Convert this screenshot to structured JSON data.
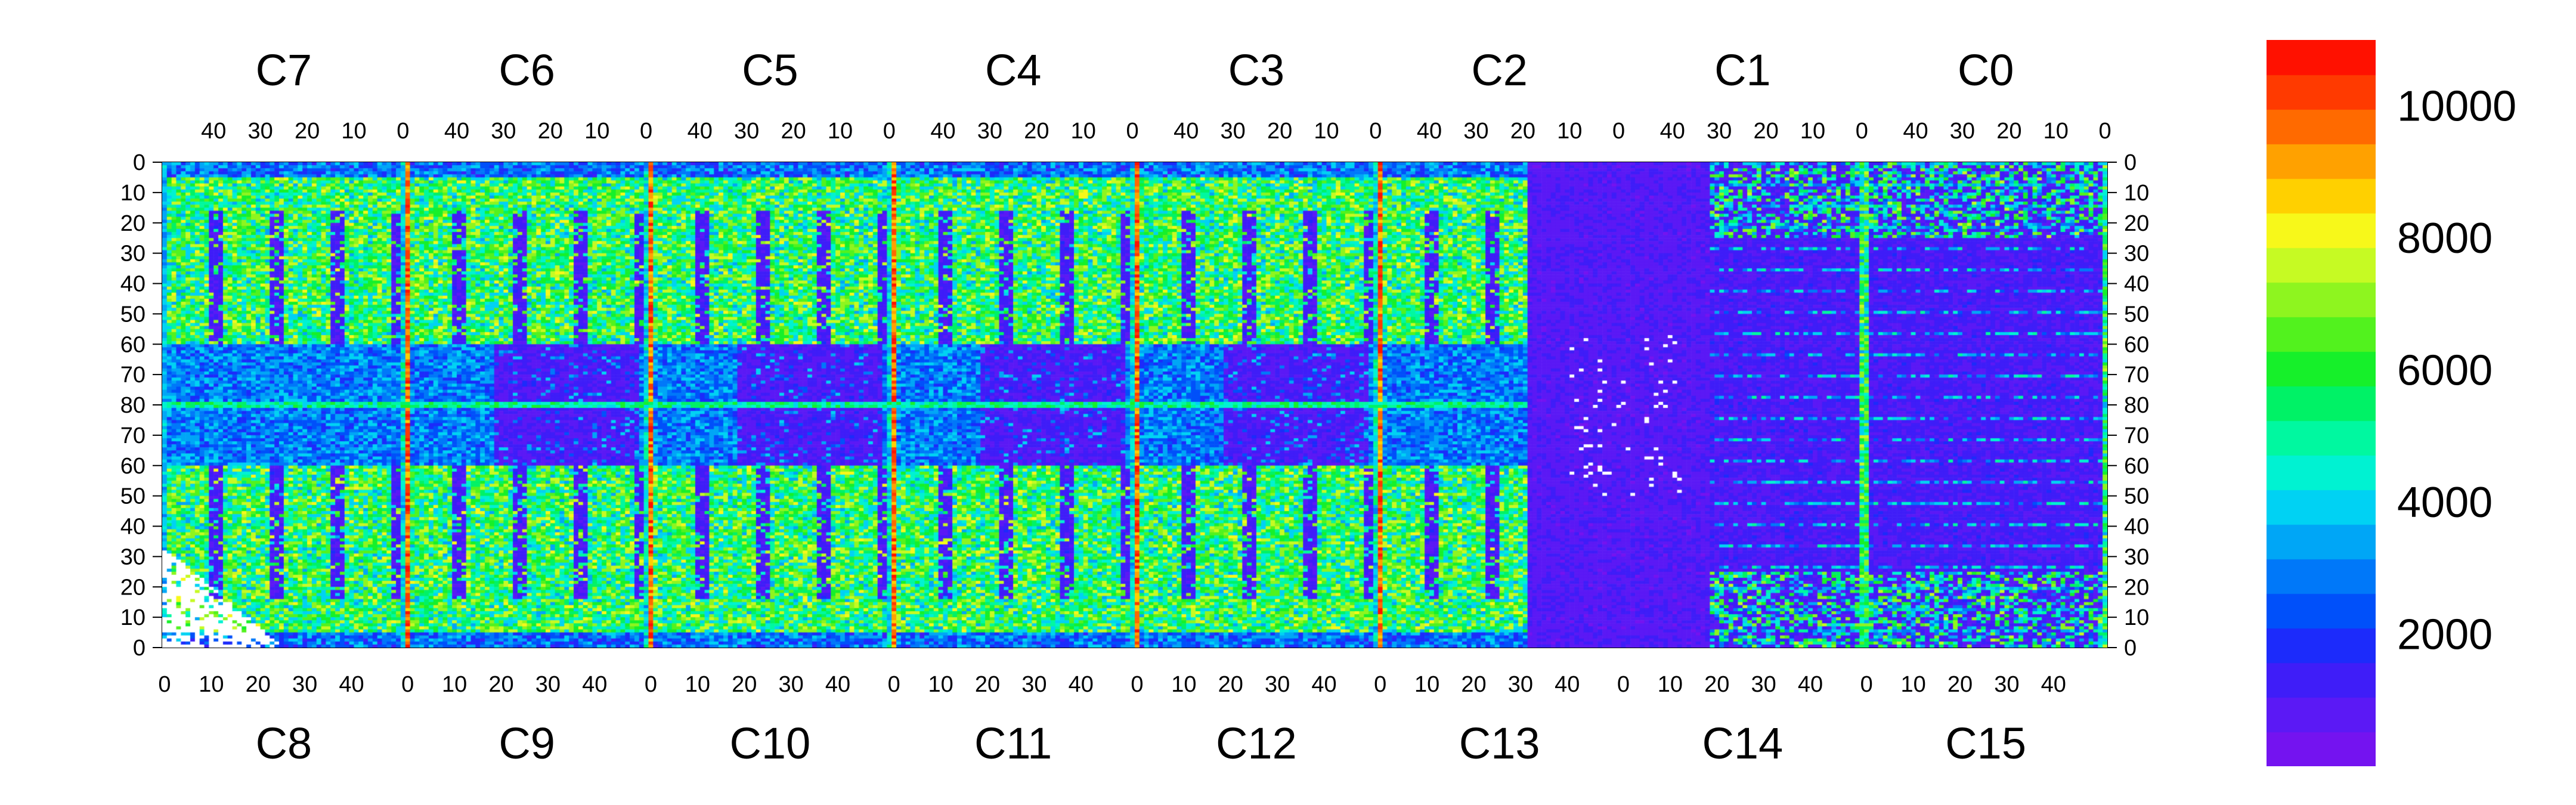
{
  "chart_data": {
    "type": "heatmap",
    "title": "",
    "top_chip_labels": [
      "C7",
      "C6",
      "C5",
      "C4",
      "C3",
      "C2",
      "C1",
      "C0"
    ],
    "bottom_chip_labels": [
      "C8",
      "C9",
      "C10",
      "C11",
      "C12",
      "C13",
      "C14",
      "C15"
    ],
    "top_tick_labels": [
      "40",
      "30",
      "20",
      "10",
      "0"
    ],
    "bottom_tick_labels": [
      "0",
      "10",
      "20",
      "30",
      "40"
    ],
    "y_tick_labels": [
      "0",
      "10",
      "20",
      "30",
      "40",
      "50",
      "60",
      "70",
      "80",
      "70",
      "60",
      "50",
      "40",
      "30",
      "20",
      "10",
      "0"
    ],
    "colorbar": {
      "min": 0,
      "max": 11000,
      "tick_labels": [
        "10000",
        "8000",
        "6000",
        "4000",
        "2000"
      ],
      "tick_values": [
        10000,
        8000,
        6000,
        4000,
        2000
      ],
      "colors": [
        "#7413f0",
        "#5b19f5",
        "#3f1df8",
        "#1c2bfb",
        "#0050fa",
        "#0078f9",
        "#00a6f6",
        "#00d2f3",
        "#00f2d2",
        "#00f8a0",
        "#00f266",
        "#16f02a",
        "#52f21e",
        "#8ef51f",
        "#c6fa23",
        "#f7f81a",
        "#ffd000",
        "#ffa100",
        "#ff6a00",
        "#ff3a00",
        "#ff1100"
      ]
    },
    "chips_per_row": 8,
    "columns_per_chip": 52,
    "rows_per_half": 80,
    "features": {
      "high_columns_near_edges": "red vertical columns at the chip boundaries in the left half",
      "low_region": "chips C1/C2 and C13/C14 region near column 60 mostly low values",
      "white_empty_pixels": "lower-left corner of C8 and scattered pixels in C13/C14"
    }
  }
}
